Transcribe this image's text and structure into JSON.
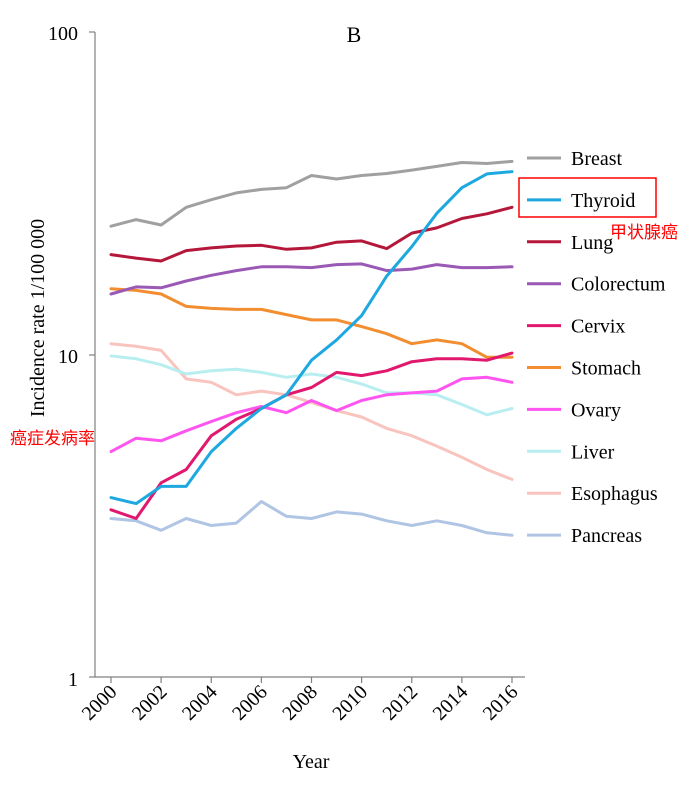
{
  "chart_data": {
    "type": "line",
    "title": "B",
    "xlabel": "Year",
    "ylabel": "Incidence rate 1/100 000",
    "yscale": "log",
    "ylim": [
      1,
      100
    ],
    "yticks": [
      "1",
      "10",
      "100"
    ],
    "xlim": [
      2000,
      2016
    ],
    "xticks": [
      "2000",
      "2002",
      "2004",
      "2006",
      "2008",
      "2010",
      "2012",
      "2014",
      "2016"
    ],
    "x": [
      2000,
      2001,
      2002,
      2003,
      2004,
      2005,
      2006,
      2007,
      2008,
      2009,
      2010,
      2011,
      2012,
      2013,
      2014,
      2015,
      2016
    ],
    "legend_position": "right",
    "series": [
      {
        "name": "Breast",
        "color": "#a0a0a0",
        "values": [
          25.0,
          26.2,
          25.2,
          28.6,
          30.2,
          31.7,
          32.5,
          32.9,
          35.9,
          35.0,
          35.9,
          36.4,
          37.3,
          38.3,
          39.4,
          39.1,
          39.7
        ]
      },
      {
        "name": "Thyroid",
        "color": "#1ea8e0",
        "values": [
          3.6,
          3.45,
          3.9,
          3.9,
          5.0,
          5.9,
          6.8,
          7.5,
          9.6,
          11.1,
          13.2,
          17.5,
          21.6,
          27.4,
          32.9,
          36.3,
          36.9
        ]
      },
      {
        "name": "Lung",
        "color": "#b5173a",
        "values": [
          20.4,
          19.9,
          19.5,
          21.0,
          21.4,
          21.7,
          21.8,
          21.2,
          21.4,
          22.3,
          22.5,
          21.3,
          23.8,
          24.7,
          26.4,
          27.3,
          28.6
        ]
      },
      {
        "name": "Colorectum",
        "color": "#9b59b6",
        "values": [
          15.4,
          16.2,
          16.1,
          16.9,
          17.6,
          18.2,
          18.7,
          18.7,
          18.6,
          19.0,
          19.1,
          18.2,
          18.4,
          19.0,
          18.6,
          18.6,
          18.7
        ]
      },
      {
        "name": "Cervix",
        "color": "#e0186e",
        "values": [
          3.3,
          3.1,
          4.0,
          4.4,
          5.6,
          6.3,
          6.8,
          7.5,
          7.9,
          8.8,
          8.6,
          8.9,
          9.5,
          9.7,
          9.7,
          9.6,
          10.1
        ]
      },
      {
        "name": "Stomach",
        "color": "#f28e30",
        "values": [
          16.0,
          15.8,
          15.4,
          14.1,
          13.9,
          13.8,
          13.8,
          13.3,
          12.8,
          12.8,
          12.2,
          11.6,
          10.8,
          11.1,
          10.8,
          9.8,
          9.8
        ]
      },
      {
        "name": "Ovary",
        "color": "#ff55f0",
        "values": [
          5.0,
          5.5,
          5.4,
          5.8,
          6.2,
          6.6,
          6.9,
          6.6,
          7.2,
          6.7,
          7.2,
          7.5,
          7.6,
          7.7,
          8.4,
          8.5,
          8.2
        ]
      },
      {
        "name": "Liver",
        "color": "#b8eef0",
        "values": [
          9.9,
          9.7,
          9.3,
          8.7,
          8.9,
          9.0,
          8.8,
          8.5,
          8.7,
          8.5,
          8.1,
          7.6,
          7.6,
          7.5,
          7.0,
          6.5,
          6.8
        ]
      },
      {
        "name": "Esophagus",
        "color": "#f8c4bd",
        "values": [
          10.8,
          10.6,
          10.3,
          8.4,
          8.2,
          7.5,
          7.7,
          7.5,
          7.1,
          6.7,
          6.4,
          5.9,
          5.6,
          5.2,
          4.8,
          4.4,
          4.1
        ]
      },
      {
        "name": "Pancreas",
        "color": "#b0c4e4",
        "values": [
          3.1,
          3.05,
          2.85,
          3.1,
          2.95,
          3.0,
          3.5,
          3.15,
          3.1,
          3.25,
          3.2,
          3.05,
          2.95,
          3.05,
          2.95,
          2.8,
          2.75
        ]
      }
    ],
    "annotations": {
      "thyroid_note": "甲状腺癌",
      "ylabel_note": "癌症发病率"
    },
    "annotation_color": "#ff0000"
  }
}
